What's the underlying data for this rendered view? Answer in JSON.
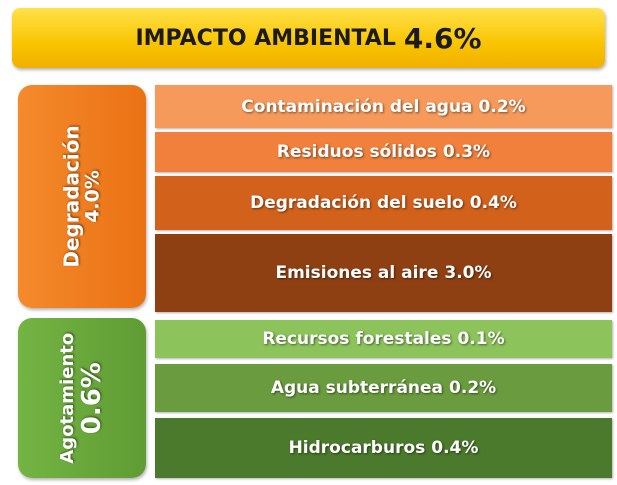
{
  "header": {
    "title": "IMPACTO AMBIENTAL",
    "value": "4.6%"
  },
  "groups": [
    {
      "name": "Degradación",
      "value": "4.0%",
      "items": [
        {
          "name": "Contaminación del agua",
          "value": "0.2%"
        },
        {
          "name": "Residuos sólidos",
          "value": "0.3%"
        },
        {
          "name": "Degradación del suelo",
          "value": "0.4%"
        },
        {
          "name": "Emisiones al aire",
          "value": "3.0%"
        }
      ]
    },
    {
      "name": "Agotamiento",
      "value": "0.6%",
      "items": [
        {
          "name": "Recursos forestales",
          "value": "0.1%"
        },
        {
          "name": "Agua subterránea",
          "value": "0.2%"
        },
        {
          "name": "Hidrocarburos",
          "value": "0.4%"
        }
      ]
    }
  ]
}
